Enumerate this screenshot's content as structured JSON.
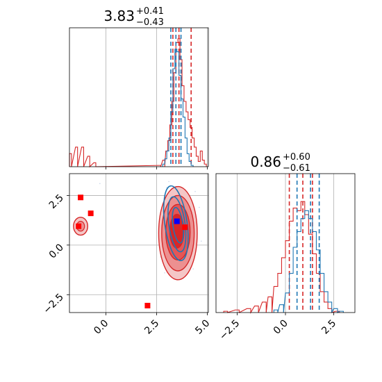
{
  "chart_data": [
    {
      "panel": "hist-top",
      "type": "histogram",
      "title": {
        "value": "3.83",
        "plus": "+0.41",
        "minus": "−0.43"
      },
      "xlim": [
        -1.8,
        5.05
      ],
      "grid": true,
      "series": [
        {
          "color": "#d62728",
          "bins": [
            [
              -1.8,
              0.1
            ],
            [
              -1.5,
              0.15
            ],
            [
              -1.2,
              0.15
            ],
            [
              -0.9,
              0.08
            ],
            [
              -0.6,
              0.03
            ],
            [
              2.6,
              0.01
            ],
            [
              2.8,
              0.05
            ],
            [
              2.95,
              0.12
            ],
            [
              3.05,
              0.2
            ],
            [
              3.15,
              0.32
            ],
            [
              3.25,
              0.5
            ],
            [
              3.35,
              0.72
            ],
            [
              3.45,
              0.95
            ],
            [
              3.55,
              0.98
            ],
            [
              3.65,
              0.82
            ],
            [
              3.75,
              0.62
            ],
            [
              3.85,
              0.5
            ],
            [
              3.95,
              0.42
            ],
            [
              4.05,
              0.36
            ],
            [
              4.15,
              0.3
            ],
            [
              4.25,
              0.22
            ],
            [
              4.35,
              0.15
            ],
            [
              4.45,
              0.08
            ],
            [
              4.55,
              0.04
            ],
            [
              4.65,
              0.12
            ],
            [
              4.75,
              0.05
            ],
            [
              4.85,
              0.02
            ]
          ],
          "quantile_lines": [
            3.3,
            3.6,
            4.2
          ]
        },
        {
          "color": "#1f77b4",
          "bins": [
            [
              2.8,
              0.02
            ],
            [
              2.9,
              0.06
            ],
            [
              3.0,
              0.12
            ],
            [
              3.1,
              0.22
            ],
            [
              3.2,
              0.42
            ],
            [
              3.3,
              0.75
            ],
            [
              3.4,
              0.9
            ],
            [
              3.5,
              0.88
            ],
            [
              3.6,
              0.7
            ],
            [
              3.7,
              0.52
            ],
            [
              3.8,
              0.38
            ],
            [
              3.9,
              0.22
            ],
            [
              4.0,
              0.1
            ],
            [
              4.1,
              0.04
            ],
            [
              4.2,
              0.01
            ]
          ],
          "quantile_lines": [
            3.2,
            3.45,
            3.7
          ]
        }
      ]
    },
    {
      "panel": "hist-right",
      "type": "histogram",
      "title": {
        "value": "0.86",
        "plus": "+0.60",
        "minus": "−0.61"
      },
      "xlim": [
        -3.6,
        3.6
      ],
      "grid": true,
      "series": [
        {
          "color": "#d62728",
          "bins": [
            [
              -3.2,
              0.01
            ],
            [
              -2.6,
              0.02
            ],
            [
              -2.0,
              0.03
            ],
            [
              -1.6,
              0.05
            ],
            [
              -1.2,
              0.08
            ],
            [
              -0.9,
              0.12
            ],
            [
              -0.6,
              0.2
            ],
            [
              -0.4,
              0.3
            ],
            [
              -0.2,
              0.42
            ],
            [
              0.0,
              0.55
            ],
            [
              0.2,
              0.7
            ],
            [
              0.4,
              0.8
            ],
            [
              0.6,
              0.78
            ],
            [
              0.8,
              0.85
            ],
            [
              1.0,
              0.75
            ],
            [
              1.2,
              0.6
            ],
            [
              1.4,
              0.45
            ],
            [
              1.6,
              0.3
            ],
            [
              1.8,
              0.16
            ],
            [
              2.0,
              0.08
            ],
            [
              2.2,
              0.03
            ],
            [
              2.6,
              0.01
            ]
          ],
          "quantile_lines": [
            0.2,
            0.9,
            1.4
          ]
        },
        {
          "color": "#1f77b4",
          "bins": [
            [
              -0.6,
              0.02
            ],
            [
              -0.3,
              0.06
            ],
            [
              0.0,
              0.15
            ],
            [
              0.2,
              0.3
            ],
            [
              0.4,
              0.5
            ],
            [
              0.6,
              0.62
            ],
            [
              0.8,
              0.72
            ],
            [
              1.0,
              0.78
            ],
            [
              1.2,
              0.72
            ],
            [
              1.4,
              0.62
            ],
            [
              1.6,
              0.48
            ],
            [
              1.8,
              0.3
            ],
            [
              2.0,
              0.16
            ],
            [
              2.2,
              0.08
            ],
            [
              2.5,
              0.03
            ],
            [
              2.8,
              0.01
            ]
          ],
          "quantile_lines": [
            0.6,
            1.3,
            1.75
          ]
        }
      ]
    },
    {
      "panel": "scatter-2d",
      "type": "scatter",
      "xlim": [
        -1.8,
        5.05
      ],
      "ylim": [
        -3.4,
        3.6
      ],
      "grid": true,
      "x_ticks": [
        "0.0",
        "2.5",
        "5.0"
      ],
      "y_ticks": [
        "−2.5",
        "0.0",
        "2.5"
      ],
      "right_x_ticks": [
        "−2.5",
        "0.0",
        "2.5"
      ],
      "red_markers": [
        [
          -1.25,
          2.4
        ],
        [
          -0.75,
          1.6
        ],
        [
          -1.35,
          0.95
        ],
        [
          3.9,
          0.9
        ],
        [
          2.05,
          -3.05
        ]
      ],
      "blue_markers": [
        [
          3.5,
          1.2
        ]
      ],
      "red_contours": [
        {
          "cx": 3.55,
          "cy": 0.6,
          "rx": 0.95,
          "ry": 2.35,
          "fill": "#f4c6c6"
        },
        {
          "cx": 3.55,
          "cy": 0.6,
          "rx": 0.8,
          "ry": 1.9,
          "fill": "#ec9090"
        },
        {
          "cx": 3.55,
          "cy": 0.65,
          "rx": 0.6,
          "ry": 1.4,
          "fill": "#e45656"
        },
        {
          "cx": 3.5,
          "cy": 0.7,
          "rx": 0.35,
          "ry": 0.85,
          "fill": "#d62728"
        }
      ],
      "blue_contours": [
        {
          "cx": 3.45,
          "cy": 1.1,
          "rx": 0.55,
          "ry": 1.9
        },
        {
          "cx": 3.5,
          "cy": 1.05,
          "rx": 0.4,
          "ry": 1.4
        },
        {
          "cx": 3.55,
          "cy": 1.0,
          "rx": 0.25,
          "ry": 0.9
        }
      ],
      "small_red_blob": {
        "cx": -1.25,
        "cy": 0.95,
        "rx": 0.35,
        "ry": 0.45
      }
    }
  ]
}
